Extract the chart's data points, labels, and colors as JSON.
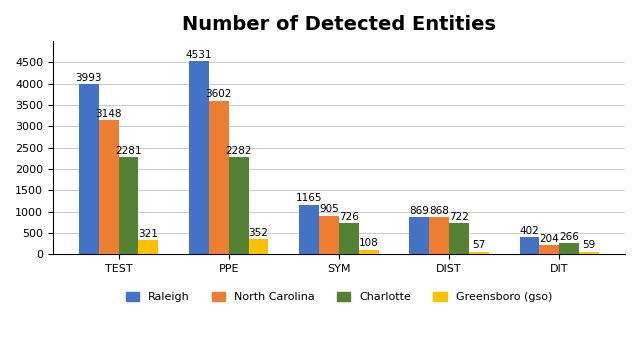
{
  "title": "Number of Detected Entities",
  "categories": [
    "TEST",
    "PPE",
    "SYM",
    "DIST",
    "DIT"
  ],
  "series": {
    "Raleigh": [
      3993,
      4531,
      1165,
      869,
      402
    ],
    "North Carolina": [
      3148,
      3602,
      905,
      868,
      204
    ],
    "Charlotte": [
      2281,
      2282,
      726,
      722,
      266
    ],
    "Greensboro (gso)": [
      321,
      352,
      108,
      57,
      59
    ]
  },
  "colors": {
    "Raleigh": "#4472C4",
    "North Carolina": "#ED7D31",
    "Charlotte": "#548235",
    "Greensboro (gso)": "#FFC000"
  },
  "ylim": [
    0,
    5000
  ],
  "yticks": [
    0,
    500,
    1000,
    1500,
    2000,
    2500,
    3000,
    3500,
    4000,
    4500
  ],
  "bar_width": 0.18,
  "title_fontsize": 14,
  "label_fontsize": 7.5,
  "legend_fontsize": 8,
  "tick_fontsize": 8,
  "background_color": "#FFFFFF"
}
